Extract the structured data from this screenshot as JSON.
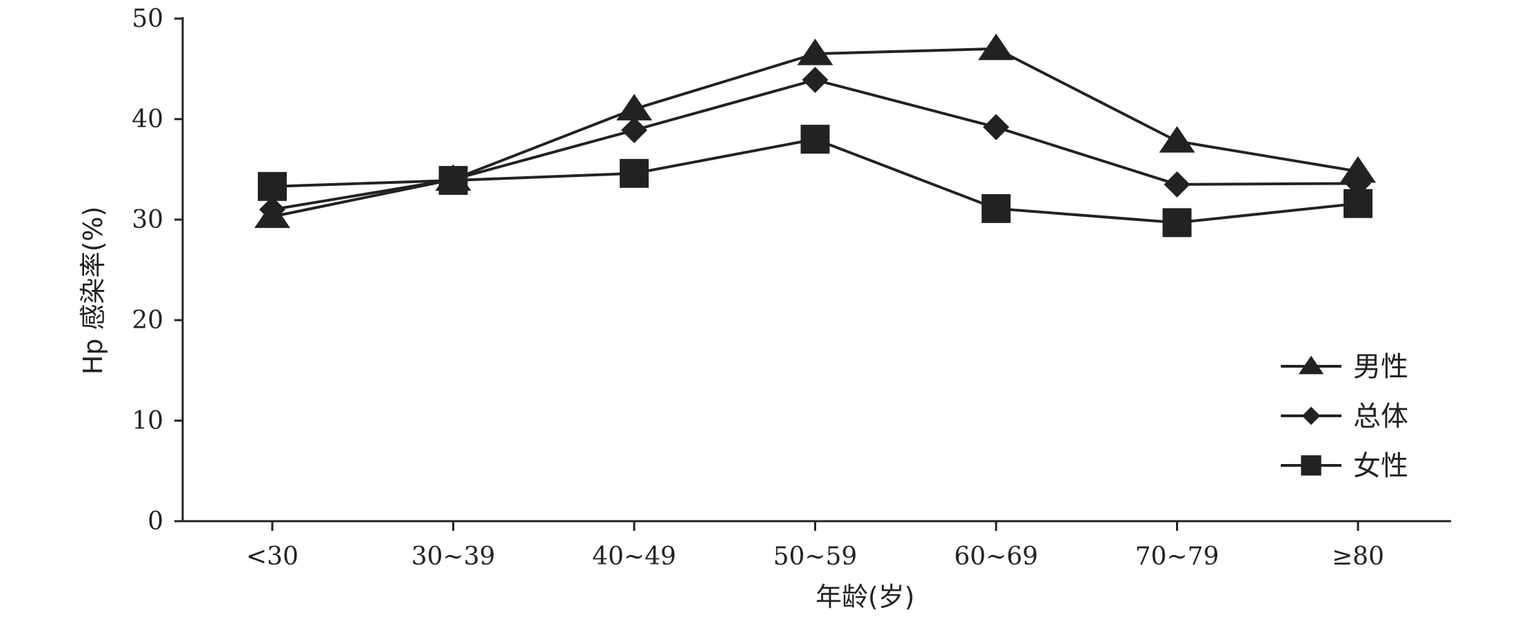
{
  "chart_data": {
    "type": "line",
    "categories": [
      "<30",
      "30~39",
      "40~49",
      "50~59",
      "60~69",
      "70~79",
      "≥80"
    ],
    "series": [
      {
        "name": "男性",
        "marker": "triangle",
        "values": [
          30.3,
          34.0,
          41.0,
          46.5,
          47.0,
          37.8,
          34.8
        ]
      },
      {
        "name": "总体",
        "marker": "diamond",
        "values": [
          31.0,
          34.0,
          38.9,
          43.9,
          39.2,
          33.5,
          33.6
        ]
      },
      {
        "name": "女性",
        "marker": "square",
        "values": [
          33.3,
          33.9,
          34.6,
          38.0,
          31.1,
          29.7,
          31.6
        ]
      }
    ],
    "xlabel": "年龄(岁)",
    "ylabel": "Hp 感染率(%)",
    "ylim": [
      0,
      50
    ],
    "yticks": [
      0,
      10,
      20,
      30,
      40,
      50
    ],
    "legend_position": "bottom-right",
    "grid": false,
    "color": "#222222"
  }
}
